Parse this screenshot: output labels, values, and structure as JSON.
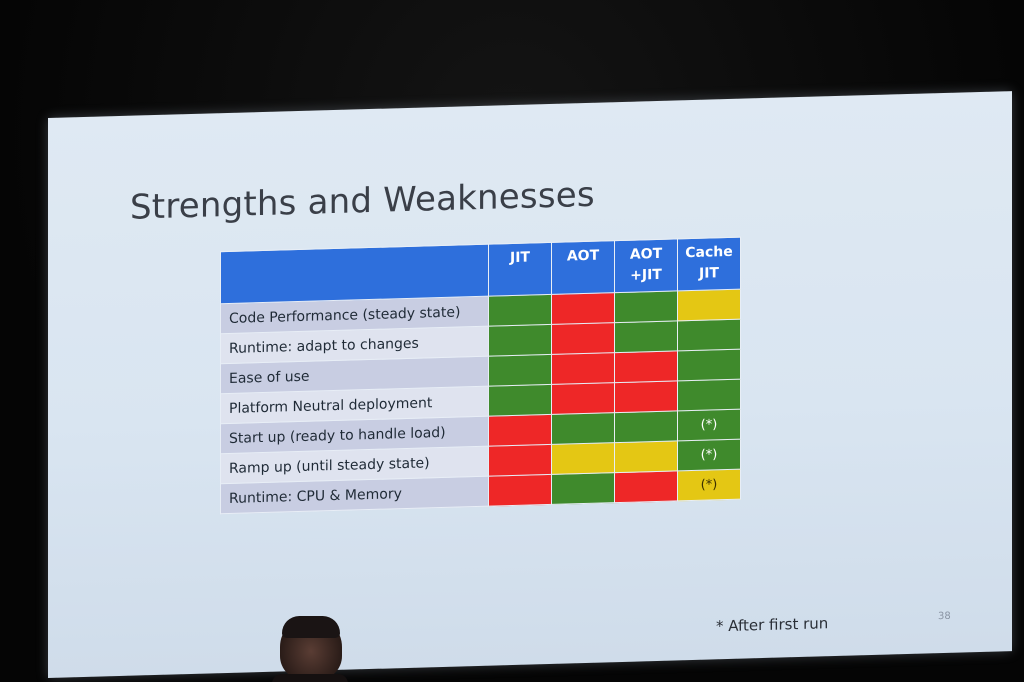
{
  "slide": {
    "title": "Strengths and Weaknesses",
    "footnote": "* After first run",
    "slide_number": "38"
  },
  "colors": {
    "green": "#3f8a2c",
    "red": "#ee2727",
    "yellow": "#e4c714",
    "header_blue": "#2e6fdc"
  },
  "table": {
    "columns": [
      "JIT",
      "AOT",
      "AOT\n+JIT",
      "Cache\nJIT"
    ],
    "rows": [
      {
        "label": "Code Performance (steady state)",
        "cells": [
          {
            "color": "green",
            "text": ""
          },
          {
            "color": "red",
            "text": ""
          },
          {
            "color": "green",
            "text": ""
          },
          {
            "color": "yellow",
            "text": ""
          }
        ]
      },
      {
        "label": "Runtime: adapt to changes",
        "cells": [
          {
            "color": "green",
            "text": ""
          },
          {
            "color": "red",
            "text": ""
          },
          {
            "color": "green",
            "text": ""
          },
          {
            "color": "green",
            "text": ""
          }
        ]
      },
      {
        "label": "Ease of use",
        "cells": [
          {
            "color": "green",
            "text": ""
          },
          {
            "color": "red",
            "text": ""
          },
          {
            "color": "red",
            "text": ""
          },
          {
            "color": "green",
            "text": ""
          }
        ]
      },
      {
        "label": "Platform Neutral deployment",
        "cells": [
          {
            "color": "green",
            "text": ""
          },
          {
            "color": "red",
            "text": ""
          },
          {
            "color": "red",
            "text": ""
          },
          {
            "color": "green",
            "text": ""
          }
        ]
      },
      {
        "label": "Start up (ready to handle load)",
        "cells": [
          {
            "color": "red",
            "text": ""
          },
          {
            "color": "green",
            "text": ""
          },
          {
            "color": "green",
            "text": ""
          },
          {
            "color": "green",
            "text": "(*)"
          }
        ]
      },
      {
        "label": "Ramp up (until steady state)",
        "cells": [
          {
            "color": "red",
            "text": ""
          },
          {
            "color": "yellow",
            "text": ""
          },
          {
            "color": "yellow",
            "text": ""
          },
          {
            "color": "green",
            "text": "(*)"
          }
        ]
      },
      {
        "label": "Runtime: CPU & Memory",
        "cells": [
          {
            "color": "red",
            "text": ""
          },
          {
            "color": "green",
            "text": ""
          },
          {
            "color": "red",
            "text": ""
          },
          {
            "color": "yellow",
            "text": "(*)"
          }
        ]
      }
    ]
  }
}
